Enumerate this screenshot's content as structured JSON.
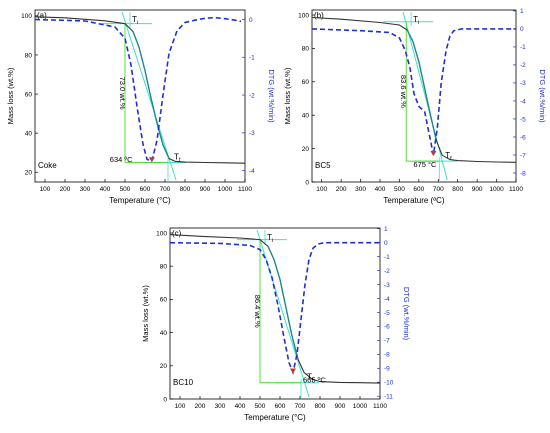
{
  "colors": {
    "tg": "#333333",
    "dtg": "#1f2fd6",
    "onset": "#3fe0d0",
    "fit": "#1a8c8c",
    "guide": "#44dd22",
    "frame": "#000000"
  },
  "chart_data": [
    {
      "type": "line",
      "panel_label": "(a)",
      "sample": "Coke",
      "xlabel": "Temperature (°C)",
      "ylabel_left": "Mass loss (wt.%)",
      "ylabel_right": "DTG (wt.%/min)",
      "xlim": [
        50,
        1100
      ],
      "ylim_left": [
        15,
        103
      ],
      "ylim_right": [
        -4.3,
        0.25
      ],
      "x_ticks": [
        100,
        200,
        300,
        400,
        500,
        600,
        700,
        800,
        900,
        1000,
        1100
      ],
      "y_ticks_left": [
        20,
        40,
        60,
        80,
        100
      ],
      "y_ticks_right": [
        0,
        -1,
        -2,
        -3,
        -4
      ],
      "grid": false,
      "series": [
        {
          "axis": "left",
          "style": "solid",
          "x": [
            50,
            200,
            400,
            500,
            540,
            570,
            600,
            630,
            660,
            690,
            720,
            750,
            800,
            900,
            1000,
            1100
          ],
          "y": [
            99.5,
            99,
            97.5,
            96,
            92,
            84,
            72,
            58,
            45,
            34,
            27,
            25.6,
            25.2,
            25,
            24.8,
            24.6
          ]
        },
        {
          "axis": "right",
          "style": "dashed",
          "x": [
            50,
            300,
            450,
            500,
            530,
            560,
            590,
            610,
            634,
            660,
            690,
            720,
            760,
            800,
            850,
            900,
            950,
            1000,
            1050,
            1080
          ],
          "y": [
            0,
            -0.04,
            -0.2,
            -0.5,
            -1.2,
            -2.3,
            -3.3,
            -3.7,
            -3.75,
            -3.2,
            -2.0,
            -0.9,
            -0.3,
            -0.08,
            -0.02,
            0.03,
            0.05,
            0.02,
            -0.02,
            -0.05
          ]
        }
      ],
      "annotations": {
        "ti_label": "T",
        "ti_sub": "i",
        "tf_label": "T",
        "tf_sub": "f",
        "peak": "634 ºC",
        "peak_x": 634,
        "peak_y_right": -3.75,
        "mass_loss": "73.0 wt.%",
        "ti_x": 525,
        "tf_x": 715,
        "level_start": 96,
        "level_end": 25
      }
    },
    {
      "type": "line",
      "panel_label": "(b)",
      "sample": "BC5",
      "xlabel": "Temperature (ºC)",
      "ylabel_left": "Mass loss (wt.%)",
      "ylabel_right": "DTG (wt.%/min)",
      "xlim": [
        50,
        1100
      ],
      "ylim_left": [
        0,
        103
      ],
      "ylim_right": [
        -8.5,
        1.05
      ],
      "x_ticks": [
        100,
        200,
        300,
        400,
        500,
        600,
        700,
        800,
        900,
        1000,
        1100
      ],
      "y_ticks_left": [
        0,
        20,
        40,
        60,
        80,
        100
      ],
      "y_ticks_right": [
        1,
        0,
        -1,
        -2,
        -3,
        -4,
        -5,
        -6,
        -7,
        -8
      ],
      "grid": false,
      "series": [
        {
          "axis": "left",
          "style": "solid",
          "x": [
            50,
            200,
            400,
            500,
            540,
            570,
            600,
            630,
            660,
            690,
            720,
            760,
            800,
            900,
            1000,
            1100
          ],
          "y": [
            98.5,
            97.5,
            95.5,
            94,
            91,
            84,
            72,
            56,
            40,
            25,
            16,
            13.5,
            12.8,
            12.3,
            12,
            11.8
          ]
        },
        {
          "axis": "right",
          "style": "dashed",
          "x": [
            50,
            300,
            450,
            500,
            530,
            555,
            575,
            600,
            630,
            660,
            675,
            695,
            715,
            740,
            760,
            780,
            820,
            900,
            1000,
            1100
          ],
          "y": [
            0,
            -0.1,
            -0.2,
            -0.5,
            -1.2,
            -2.2,
            -3.6,
            -4.3,
            -4.6,
            -6.2,
            -7.0,
            -5.5,
            -3.0,
            -1.2,
            -0.4,
            -0.1,
            0,
            0,
            0,
            0
          ]
        }
      ],
      "annotations": {
        "ti_label": "T",
        "ti_sub": "i",
        "tf_label": "T",
        "tf_sub": "f",
        "peak": "675 °C",
        "peak_x": 675,
        "peak_y_right": -7.0,
        "mass_loss": "83.6 wt.%",
        "ti_x": 560,
        "tf_x": 705,
        "level_start": 96,
        "level_end": 12.5
      }
    },
    {
      "type": "line",
      "panel_label": "(c)",
      "sample": "BC10",
      "xlabel": "Temperature (°C)",
      "ylabel_left": "Mass loss (wt.%)",
      "ylabel_right": "DTG (wt.%/min)",
      "xlim": [
        50,
        1100
      ],
      "ylim_left": [
        0,
        103
      ],
      "ylim_right": [
        -11.2,
        1.05
      ],
      "x_ticks": [
        100,
        200,
        300,
        400,
        500,
        600,
        700,
        800,
        900,
        1000,
        1100
      ],
      "y_ticks_left": [
        0,
        20,
        40,
        60,
        80,
        100
      ],
      "y_ticks_right": [
        1,
        0,
        -1,
        -2,
        -3,
        -4,
        -5,
        -6,
        -7,
        -8,
        -9,
        -10,
        -11
      ],
      "grid": false,
      "series": [
        {
          "axis": "left",
          "style": "solid",
          "x": [
            50,
            200,
            400,
            500,
            540,
            570,
            600,
            630,
            660,
            690,
            720,
            760,
            800,
            900,
            1000,
            1100
          ],
          "y": [
            99,
            98,
            97,
            96,
            92,
            84,
            72,
            55,
            38,
            24,
            16,
            12,
            10.5,
            10,
            9.8,
            9.6
          ]
        },
        {
          "axis": "right",
          "style": "dashed",
          "x": [
            50,
            300,
            450,
            500,
            530,
            560,
            590,
            620,
            645,
            665,
            685,
            705,
            725,
            745,
            765,
            790,
            820,
            900,
            1000,
            1100
          ],
          "y": [
            0,
            -0.05,
            -0.2,
            -0.5,
            -1.2,
            -2.5,
            -4.5,
            -6.8,
            -8.6,
            -9.3,
            -8.0,
            -5.5,
            -3.0,
            -1.2,
            -0.4,
            -0.1,
            0,
            0,
            0,
            0
          ]
        }
      ],
      "annotations": {
        "ti_label": "T",
        "ti_sub": "i",
        "tf_label": "T",
        "tf_sub": "f",
        "peak": "665 ºC",
        "peak_x": 665,
        "peak_y_right": -9.3,
        "mass_loss": "86.4 wt.%",
        "ti_x": 525,
        "tf_x": 705,
        "level_start": 96,
        "level_end": 9.8
      }
    }
  ]
}
